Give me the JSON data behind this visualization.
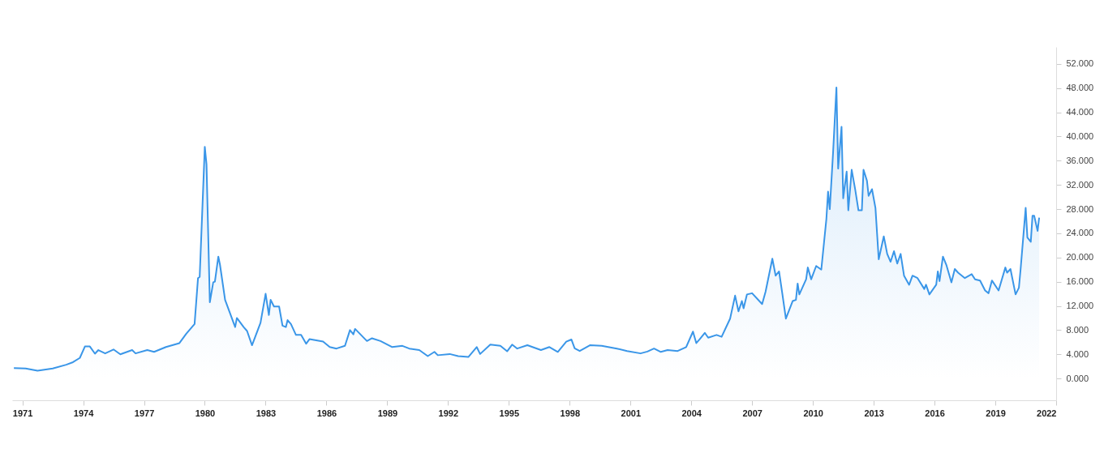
{
  "chart_data": {
    "type": "area",
    "grid": false,
    "xlim": [
      "1970-07",
      "2022"
    ],
    "xticks": [
      "1971",
      "1974",
      "1977",
      "1980",
      "1983",
      "1986",
      "1989",
      "1992",
      "1995",
      "1998",
      "2001",
      "2004",
      "2007",
      "2010",
      "2013",
      "2016",
      "2019",
      "2022"
    ],
    "ylim": [
      -3.6,
      54.8
    ],
    "yticks": [
      {
        "value": 0,
        "label": "0.000"
      },
      {
        "value": 4,
        "label": "4.000"
      },
      {
        "value": 8,
        "label": "8.000"
      },
      {
        "value": 12,
        "label": "12.000"
      },
      {
        "value": 16,
        "label": "16.000"
      },
      {
        "value": 20,
        "label": "20.000"
      },
      {
        "value": 24,
        "label": "24.000"
      },
      {
        "value": 28,
        "label": "28.000"
      },
      {
        "value": 32,
        "label": "32.000"
      },
      {
        "value": 36,
        "label": "36.000"
      },
      {
        "value": 40,
        "label": "40.000"
      },
      {
        "value": 44,
        "label": "44.000"
      },
      {
        "value": 48,
        "label": "48.000"
      },
      {
        "value": 52,
        "label": "52.000"
      }
    ],
    "x": [
      "1970-08",
      "1971-03",
      "1971-10",
      "1972-07",
      "1973-03",
      "1973-07",
      "1973-11",
      "1974-02",
      "1974-05",
      "1974-08",
      "1974-10",
      "1975-02",
      "1975-07",
      "1975-11",
      "1976-06",
      "1976-08",
      "1977-03",
      "1977-07",
      "1978-02",
      "1978-10",
      "1979-02",
      "1979-07",
      "1979-09",
      "1979-10",
      "1980-01",
      "1980-02",
      "1980-04",
      "1980-06",
      "1980-07",
      "1980-09",
      "1980-10",
      "1981-01",
      "1981-07",
      "1981-08",
      "1981-12",
      "1982-02",
      "1982-05",
      "1982-10",
      "1983-01",
      "1983-03",
      "1983-04",
      "1983-06",
      "1983-09",
      "1983-11",
      "1984-01",
      "1984-02",
      "1984-04",
      "1984-07",
      "1984-10",
      "1985-01",
      "1985-03",
      "1985-11",
      "1986-03",
      "1986-07",
      "1986-12",
      "1987-03",
      "1987-05",
      "1987-06",
      "1988-01",
      "1988-04",
      "1988-09",
      "1989-04",
      "1989-10",
      "1990-02",
      "1990-08",
      "1991-01",
      "1991-05",
      "1991-07",
      "1992-02",
      "1992-07",
      "1993-01",
      "1993-06",
      "1993-08",
      "1994-02",
      "1994-08",
      "1994-12",
      "1995-03",
      "1995-06",
      "1995-12",
      "1996-08",
      "1997-01",
      "1997-06",
      "1997-11",
      "1998-02",
      "1998-04",
      "1998-07",
      "1999-01",
      "1999-08",
      "2000-05",
      "2000-11",
      "2001-07",
      "2001-11",
      "2002-03",
      "2002-07",
      "2002-11",
      "2003-05",
      "2003-10",
      "2004-02",
      "2004-04",
      "2004-06",
      "2004-09",
      "2004-11",
      "2005-04",
      "2005-07",
      "2005-12",
      "2006-03",
      "2006-05",
      "2006-07",
      "2006-08",
      "2006-10",
      "2007-01",
      "2007-07",
      "2007-09",
      "2008-01",
      "2008-03",
      "2008-05",
      "2008-07",
      "2008-09",
      "2009-01",
      "2009-03",
      "2009-04",
      "2009-05",
      "2009-09",
      "2009-10",
      "2009-12",
      "2010-03",
      "2010-06",
      "2010-09",
      "2010-10",
      "2010-11",
      "2011-01",
      "2011-03",
      "2011-04",
      "2011-06",
      "2011-07",
      "2011-09",
      "2011-10",
      "2011-12",
      "2012-02",
      "2012-04",
      "2012-06",
      "2012-07",
      "2012-09",
      "2012-10",
      "2012-12",
      "2013-02",
      "2013-04",
      "2013-07",
      "2013-09",
      "2013-11",
      "2014-01",
      "2014-03",
      "2014-05",
      "2014-07",
      "2014-10",
      "2014-12",
      "2015-03",
      "2015-07",
      "2015-08",
      "2015-10",
      "2016-02",
      "2016-03",
      "2016-04",
      "2016-06",
      "2016-08",
      "2016-11",
      "2017-01",
      "2017-03",
      "2017-07",
      "2017-11",
      "2018-01",
      "2018-04",
      "2018-07",
      "2018-09",
      "2018-11",
      "2019-03",
      "2019-07",
      "2019-08",
      "2019-10",
      "2020-01",
      "2020-03",
      "2020-04",
      "2020-07",
      "2020-08",
      "2020-10",
      "2020-11",
      "2020-12",
      "2021-02",
      "2021-03"
    ],
    "series": [
      {
        "color": "#3a96e8",
        "values": [
          1.74,
          1.65,
          1.3,
          1.65,
          2.28,
          2.7,
          3.4,
          5.3,
          5.3,
          4.1,
          4.7,
          4.15,
          4.8,
          4.0,
          4.7,
          4.15,
          4.7,
          4.4,
          5.2,
          5.85,
          7.4,
          9.0,
          16.6,
          16.8,
          38.3,
          35.4,
          12.6,
          15.9,
          16.0,
          20.15,
          18.8,
          13.0,
          8.5,
          10.0,
          8.5,
          7.85,
          5.5,
          9.2,
          14.0,
          10.5,
          13.0,
          11.9,
          11.9,
          8.75,
          8.5,
          9.65,
          9.0,
          7.2,
          7.2,
          5.75,
          6.5,
          6.1,
          5.2,
          4.95,
          5.4,
          8.0,
          7.3,
          8.2,
          6.2,
          6.65,
          6.2,
          5.2,
          5.4,
          4.95,
          4.7,
          3.7,
          4.4,
          3.85,
          4.05,
          3.7,
          3.55,
          5.2,
          4.05,
          5.6,
          5.4,
          4.5,
          5.6,
          4.95,
          5.5,
          4.7,
          5.2,
          4.4,
          6.1,
          6.45,
          5.0,
          4.55,
          5.5,
          5.4,
          4.95,
          4.55,
          4.15,
          4.45,
          4.95,
          4.4,
          4.7,
          4.55,
          5.2,
          7.75,
          5.85,
          6.5,
          7.55,
          6.75,
          7.2,
          6.9,
          9.9,
          13.7,
          11.1,
          12.8,
          11.6,
          13.9,
          14.1,
          12.3,
          14.35,
          19.8,
          17.0,
          17.7,
          13.9,
          9.9,
          12.8,
          13.0,
          15.7,
          13.9,
          16.4,
          18.35,
          16.4,
          18.6,
          18.0,
          26.4,
          30.9,
          28.0,
          37.6,
          48.1,
          34.7,
          41.6,
          29.8,
          34.2,
          27.8,
          34.5,
          31.3,
          27.8,
          27.8,
          34.5,
          32.7,
          30.2,
          31.3,
          28.2,
          19.7,
          23.5,
          20.6,
          19.3,
          21.05,
          19.0,
          20.6,
          17.0,
          15.5,
          17.0,
          16.6,
          14.8,
          15.5,
          13.9,
          15.5,
          17.7,
          16.1,
          20.15,
          18.8,
          15.9,
          18.1,
          17.5,
          16.6,
          17.25,
          16.4,
          16.2,
          14.55,
          14.1,
          16.2,
          14.55,
          18.35,
          17.5,
          18.1,
          13.9,
          15.0,
          18.1,
          28.2,
          23.3,
          22.6,
          26.9,
          26.9,
          24.4,
          26.6
        ]
      }
    ]
  }
}
